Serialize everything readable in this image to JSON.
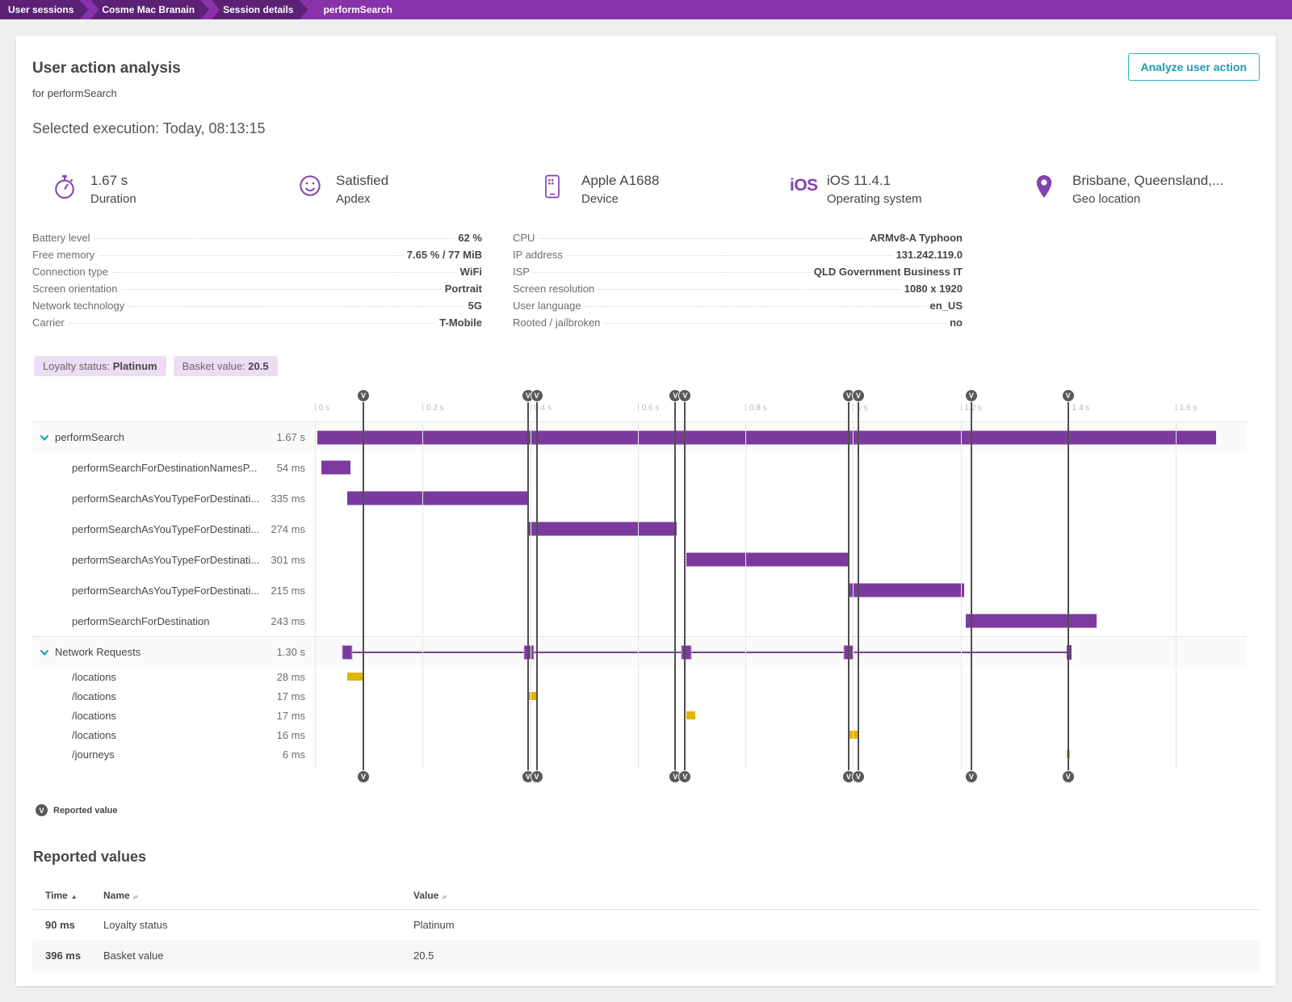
{
  "breadcrumb": {
    "items": [
      "User sessions",
      "Cosme Mac Branain",
      "Session details",
      "performSearch"
    ]
  },
  "header": {
    "title": "User action analysis",
    "subtitle": "for performSearch",
    "action_button": "Analyze user action",
    "selected_execution": "Selected execution: Today, 08:13:15"
  },
  "summary": {
    "items": [
      {
        "icon": "stopwatch-icon",
        "value": "1.67 s",
        "label": "Duration"
      },
      {
        "icon": "smiley-icon",
        "value": "Satisfied",
        "label": "Apdex"
      },
      {
        "icon": "phone-icon",
        "value": "Apple A1688",
        "label": "Device"
      },
      {
        "icon": "ios-icon",
        "value": "iOS 11.4.1",
        "label": "Operating system"
      },
      {
        "icon": "pin-icon",
        "value": "Brisbane, Queensland,...",
        "label": "Geo location"
      }
    ]
  },
  "details": {
    "left": [
      {
        "label": "Battery level",
        "value": "62 %"
      },
      {
        "label": "Free memory",
        "value": "7.65 % / 77 MiB"
      },
      {
        "label": "Connection type",
        "value": "WiFi"
      },
      {
        "label": "Screen orientation",
        "value": "Portrait"
      },
      {
        "label": "Network technology",
        "value": "5G"
      },
      {
        "label": "Carrier",
        "value": "T-Mobile"
      }
    ],
    "right": [
      {
        "label": "CPU",
        "value": "ARMv8-A Typhoon"
      },
      {
        "label": "IP address",
        "value": "131.242.119.0"
      },
      {
        "label": "ISP",
        "value": "QLD Government Business IT"
      },
      {
        "label": "Screen resolution",
        "value": "1080 x 1920"
      },
      {
        "label": "User language",
        "value": "en_US"
      },
      {
        "label": "Rooted / jailbroken",
        "value": "no"
      }
    ]
  },
  "tags": [
    {
      "label": "Loyalty status:",
      "value": "Platinum"
    },
    {
      "label": "Basket value:",
      "value": "20.5"
    }
  ],
  "chart_data": {
    "type": "waterfall-gantt",
    "time_unit": "s",
    "axis": {
      "min": 0,
      "max": 1.72,
      "ticks": [
        {
          "t": 0.0,
          "label": "0 s"
        },
        {
          "t": 0.2,
          "label": "0.2 s"
        },
        {
          "t": 0.4,
          "label": "0.4 s"
        },
        {
          "t": 0.6,
          "label": "0.6 s"
        },
        {
          "t": 0.8,
          "label": "0.8 s"
        },
        {
          "t": 1.0,
          "label": "1 s"
        },
        {
          "t": 1.2,
          "label": "1.2 s"
        },
        {
          "t": 1.4,
          "label": "1.4 s"
        },
        {
          "t": 1.6,
          "label": "1.6 s"
        }
      ]
    },
    "markers": {
      "symbol": "V",
      "times": [
        0.09,
        0.396,
        0.412,
        0.67,
        0.688,
        0.992,
        1.01,
        1.22,
        1.4
      ]
    },
    "colors": {
      "action_bar": "#7b3b9e",
      "network_bar": "#e1b505",
      "marker": "#595959"
    },
    "rows": [
      {
        "type": "group",
        "name": "performSearch",
        "duration": "1.67 s",
        "start": 0.005,
        "ms": 1670
      },
      {
        "type": "action",
        "name": "performSearchForDestinationNamesP...",
        "duration": "54 ms",
        "start": 0.012,
        "ms": 54
      },
      {
        "type": "action",
        "name": "performSearchAsYouTypeForDestinati...",
        "duration": "335 ms",
        "start": 0.06,
        "ms": 335
      },
      {
        "type": "action",
        "name": "performSearchAsYouTypeForDestinati...",
        "duration": "274 ms",
        "start": 0.398,
        "ms": 274
      },
      {
        "type": "action",
        "name": "performSearchAsYouTypeForDestinati...",
        "duration": "301 ms",
        "start": 0.69,
        "ms": 301
      },
      {
        "type": "action",
        "name": "performSearchAsYouTypeForDestinati...",
        "duration": "215 ms",
        "start": 0.992,
        "ms": 215
      },
      {
        "type": "action",
        "name": "performSearchForDestination",
        "duration": "243 ms",
        "start": 1.21,
        "ms": 243
      },
      {
        "type": "netgroup",
        "name": "Network Requests",
        "duration": "1.30 s",
        "line_start": 0.06,
        "line_end": 1.402,
        "nodes": [
          0.06,
          0.398,
          0.69,
          0.992
        ],
        "end_node": 1.402
      },
      {
        "type": "netitem",
        "name": "/locations",
        "duration": "28 ms",
        "start": 0.06,
        "ms": 28
      },
      {
        "type": "netitem",
        "name": "/locations",
        "duration": "17 ms",
        "start": 0.398,
        "ms": 17
      },
      {
        "type": "netitem",
        "name": "/locations",
        "duration": "17 ms",
        "start": 0.69,
        "ms": 17
      },
      {
        "type": "netitem",
        "name": "/locations",
        "duration": "16 ms",
        "start": 0.992,
        "ms": 16
      },
      {
        "type": "netitem",
        "name": "/journeys",
        "duration": "6 ms",
        "start": 1.398,
        "ms": 6
      }
    ]
  },
  "legend": {
    "symbol": "V",
    "label": "Reported value"
  },
  "reported_values": {
    "title": "Reported values",
    "columns": [
      {
        "label": "Time",
        "sort": "asc"
      },
      {
        "label": "Name",
        "sort": "both"
      },
      {
        "label": "Value",
        "sort": "both"
      }
    ],
    "rows": [
      {
        "time": "90 ms",
        "name": "Loyalty status",
        "value": "Platinum"
      },
      {
        "time": "396 ms",
        "name": "Basket value",
        "value": "20.5"
      }
    ]
  }
}
